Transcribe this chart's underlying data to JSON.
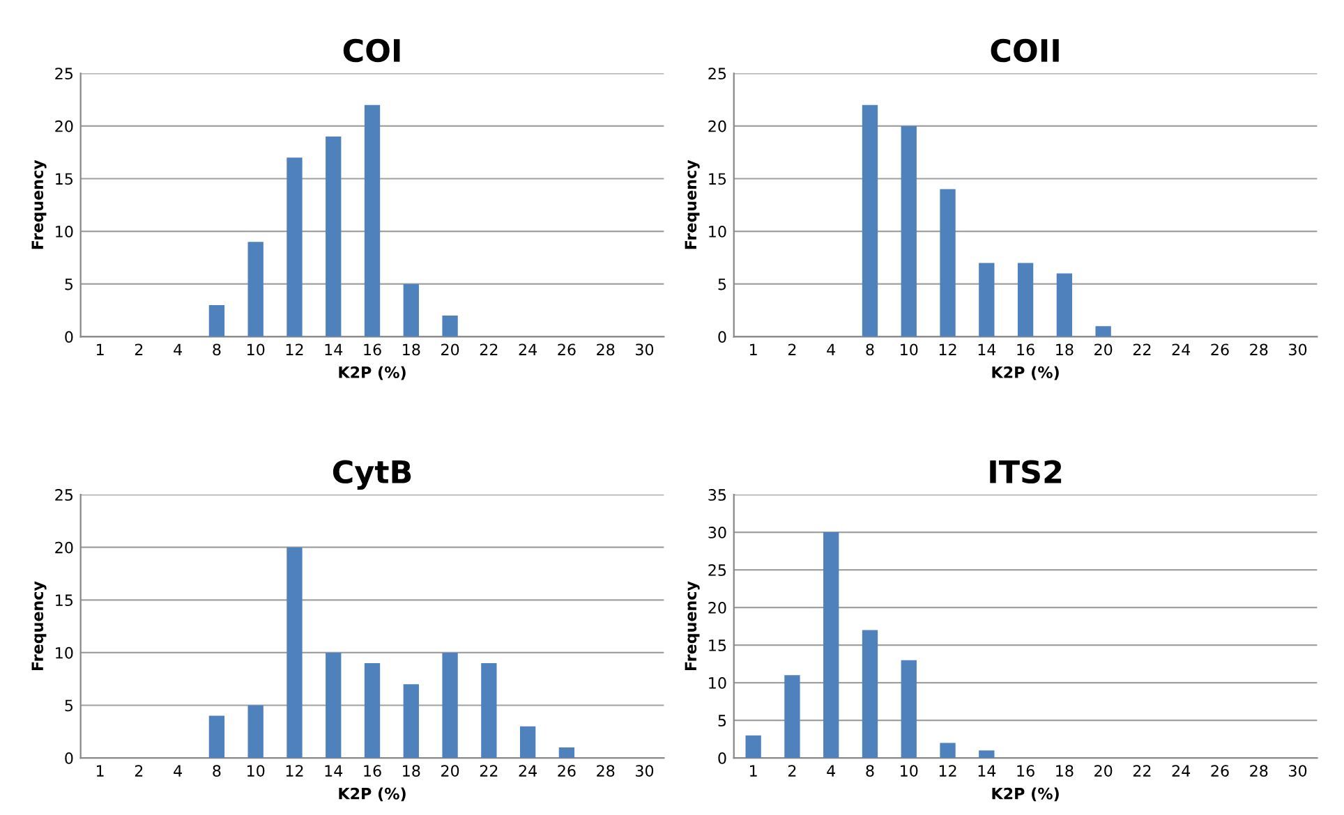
{
  "chart_data": [
    {
      "type": "bar",
      "title": "COI",
      "xlabel": "K2P (%)",
      "ylabel": "Frequency",
      "categories": [
        "1",
        "2",
        "4",
        "8",
        "10",
        "12",
        "14",
        "16",
        "18",
        "20",
        "22",
        "24",
        "26",
        "28",
        "30"
      ],
      "values": [
        0,
        0,
        0,
        3,
        9,
        17,
        19,
        22,
        5,
        2,
        0,
        0,
        0,
        0,
        0
      ],
      "color": "#4f81bd",
      "ylim": [
        0,
        25
      ],
      "yticks": [
        0,
        5,
        10,
        15,
        20,
        25
      ],
      "grid": "y"
    },
    {
      "type": "bar",
      "title": "COII",
      "xlabel": "K2P (%)",
      "ylabel": "Frequency",
      "categories": [
        "1",
        "2",
        "4",
        "8",
        "10",
        "12",
        "14",
        "16",
        "18",
        "20",
        "22",
        "24",
        "26",
        "28",
        "30"
      ],
      "values": [
        0,
        0,
        0,
        22,
        20,
        14,
        7,
        7,
        6,
        1,
        0,
        0,
        0,
        0,
        0
      ],
      "color": "#4f81bd",
      "ylim": [
        0,
        25
      ],
      "yticks": [
        0,
        5,
        10,
        15,
        20,
        25
      ],
      "grid": "y"
    },
    {
      "type": "bar",
      "title": "CytB",
      "xlabel": "K2P (%)",
      "ylabel": "Frequency",
      "categories": [
        "1",
        "2",
        "4",
        "8",
        "10",
        "12",
        "14",
        "16",
        "18",
        "20",
        "22",
        "24",
        "26",
        "28",
        "30"
      ],
      "values": [
        0,
        0,
        0,
        4,
        5,
        20,
        10,
        9,
        7,
        10,
        9,
        3,
        1,
        0,
        0
      ],
      "color": "#4f81bd",
      "ylim": [
        0,
        25
      ],
      "yticks": [
        0,
        5,
        10,
        15,
        20,
        25
      ],
      "grid": "y"
    },
    {
      "type": "bar",
      "title": "ITS2",
      "xlabel": "K2P (%)",
      "ylabel": "Frequency",
      "categories": [
        "1",
        "2",
        "4",
        "8",
        "10",
        "12",
        "14",
        "16",
        "18",
        "20",
        "22",
        "24",
        "26",
        "28",
        "30"
      ],
      "values": [
        3,
        11,
        30,
        17,
        13,
        2,
        1,
        0,
        0,
        0,
        0,
        0,
        0,
        0,
        0
      ],
      "color": "#4f81bd",
      "ylim": [
        0,
        35
      ],
      "yticks": [
        0,
        5,
        10,
        15,
        20,
        25,
        30,
        35
      ],
      "grid": "y"
    }
  ]
}
